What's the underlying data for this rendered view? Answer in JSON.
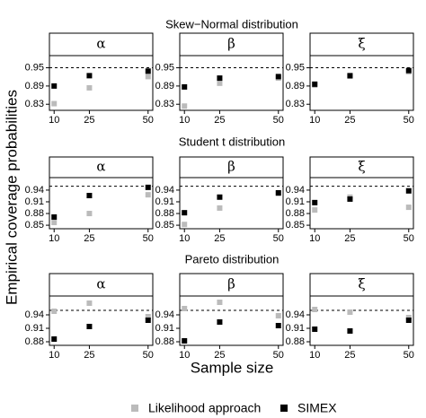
{
  "row_titles": [
    "Skew−Normal distribution",
    "Student t distribution",
    "Pareto distribution"
  ],
  "ylabel": "Empirical coverage probabilities",
  "xlabel": "Sample size",
  "chart_data": [
    {
      "type": "scatter",
      "title": "α",
      "x": [
        10,
        25,
        50
      ],
      "xlim": [
        8,
        52
      ],
      "xticks": [
        10,
        25,
        50
      ],
      "ylim": [
        0.81,
        0.99
      ],
      "yticks": [
        0.83,
        0.89,
        0.95
      ],
      "reference_line": 0.95,
      "series": [
        {
          "name": "Likelihood approach",
          "color": "#bbbbbb",
          "values": [
            0.832,
            0.884,
            0.921
          ]
        },
        {
          "name": "SIMEX",
          "color": "#000000",
          "values": [
            0.89,
            0.924,
            0.939
          ]
        }
      ]
    },
    {
      "type": "scatter",
      "title": "β",
      "x": [
        10,
        25,
        50
      ],
      "xlim": [
        8,
        52
      ],
      "xticks": [
        10,
        25,
        50
      ],
      "ylim": [
        0.81,
        0.99
      ],
      "yticks": [
        0.83,
        0.89,
        0.95
      ],
      "reference_line": 0.95,
      "series": [
        {
          "name": "Likelihood approach",
          "color": "#bbbbbb",
          "values": [
            0.824,
            0.899,
            0.916
          ]
        },
        {
          "name": "SIMEX",
          "color": "#000000",
          "values": [
            0.887,
            0.916,
            0.921
          ]
        }
      ]
    },
    {
      "type": "scatter",
      "title": "ξ",
      "x": [
        10,
        25,
        50
      ],
      "xlim": [
        8,
        52
      ],
      "xticks": [
        10,
        25,
        50
      ],
      "ylim": [
        0.81,
        0.99
      ],
      "yticks": [
        0.83,
        0.89,
        0.95
      ],
      "reference_line": 0.95,
      "series": [
        {
          "name": "Likelihood approach",
          "color": "#bbbbbb",
          "values": [
            0.893,
            0.922,
            0.937
          ]
        },
        {
          "name": "SIMEX",
          "color": "#000000",
          "values": [
            0.896,
            0.924,
            0.941
          ]
        }
      ]
    },
    {
      "type": "scatter",
      "title": "α",
      "x": [
        10,
        25,
        50
      ],
      "xlim": [
        8,
        52
      ],
      "xticks": [
        10,
        25,
        50
      ],
      "ylim": [
        0.841,
        0.972
      ],
      "yticks": [
        0.85,
        0.88,
        0.91,
        0.94
      ],
      "reference_line": 0.95,
      "series": [
        {
          "name": "Likelihood approach",
          "color": "#bbbbbb",
          "values": [
            0.857,
            0.88,
            0.928
          ]
        },
        {
          "name": "SIMEX",
          "color": "#000000",
          "values": [
            0.871,
            0.926,
            0.947
          ]
        }
      ]
    },
    {
      "type": "scatter",
      "title": "β",
      "x": [
        10,
        25,
        50
      ],
      "xlim": [
        8,
        52
      ],
      "xticks": [
        10,
        25,
        50
      ],
      "ylim": [
        0.841,
        0.972
      ],
      "yticks": [
        0.85,
        0.88,
        0.91,
        0.94
      ],
      "reference_line": 0.95,
      "series": [
        {
          "name": "Likelihood approach",
          "color": "#bbbbbb",
          "values": [
            0.852,
            0.894,
            0.931
          ]
        },
        {
          "name": "SIMEX",
          "color": "#000000",
          "values": [
            0.882,
            0.922,
            0.933
          ]
        }
      ]
    },
    {
      "type": "scatter",
      "title": "ξ",
      "x": [
        10,
        25,
        50
      ],
      "xlim": [
        8,
        52
      ],
      "xticks": [
        10,
        25,
        50
      ],
      "ylim": [
        0.841,
        0.972
      ],
      "yticks": [
        0.85,
        0.88,
        0.91,
        0.94
      ],
      "reference_line": 0.95,
      "series": [
        {
          "name": "Likelihood approach",
          "color": "#bbbbbb",
          "values": [
            0.889,
            0.922,
            0.896
          ]
        },
        {
          "name": "SIMEX",
          "color": "#000000",
          "values": [
            0.908,
            0.917,
            0.938
          ]
        }
      ]
    },
    {
      "type": "scatter",
      "title": "α",
      "x": [
        10,
        25,
        50
      ],
      "xlim": [
        8,
        52
      ],
      "xticks": [
        10,
        25,
        50
      ],
      "ylim": [
        0.872,
        0.982
      ],
      "yticks": [
        0.88,
        0.91,
        0.94
      ],
      "reference_line": 0.95,
      "series": [
        {
          "name": "Likelihood approach",
          "color": "#bbbbbb",
          "values": [
            0.948,
            0.966,
            0.936
          ]
        },
        {
          "name": "SIMEX",
          "color": "#000000",
          "values": [
            0.886,
            0.914,
            0.928
          ]
        }
      ]
    },
    {
      "type": "scatter",
      "title": "β",
      "x": [
        10,
        25,
        50
      ],
      "xlim": [
        8,
        52
      ],
      "xticks": [
        10,
        25,
        50
      ],
      "ylim": [
        0.872,
        0.982
      ],
      "yticks": [
        0.88,
        0.91,
        0.94
      ],
      "reference_line": 0.95,
      "series": [
        {
          "name": "Likelihood approach",
          "color": "#bbbbbb",
          "values": [
            0.954,
            0.968,
            0.938
          ]
        },
        {
          "name": "SIMEX",
          "color": "#000000",
          "values": [
            0.882,
            0.924,
            0.916
          ]
        }
      ]
    },
    {
      "type": "scatter",
      "title": "ξ",
      "x": [
        10,
        25,
        50
      ],
      "xlim": [
        8,
        52
      ],
      "xticks": [
        10,
        25,
        50
      ],
      "ylim": [
        0.872,
        0.982
      ],
      "yticks": [
        0.88,
        0.91,
        0.94
      ],
      "reference_line": 0.95,
      "series": [
        {
          "name": "Likelihood approach",
          "color": "#bbbbbb",
          "values": [
            0.952,
            0.946,
            0.934
          ]
        },
        {
          "name": "SIMEX",
          "color": "#000000",
          "values": [
            0.908,
            0.904,
            0.928
          ]
        }
      ]
    }
  ]
}
